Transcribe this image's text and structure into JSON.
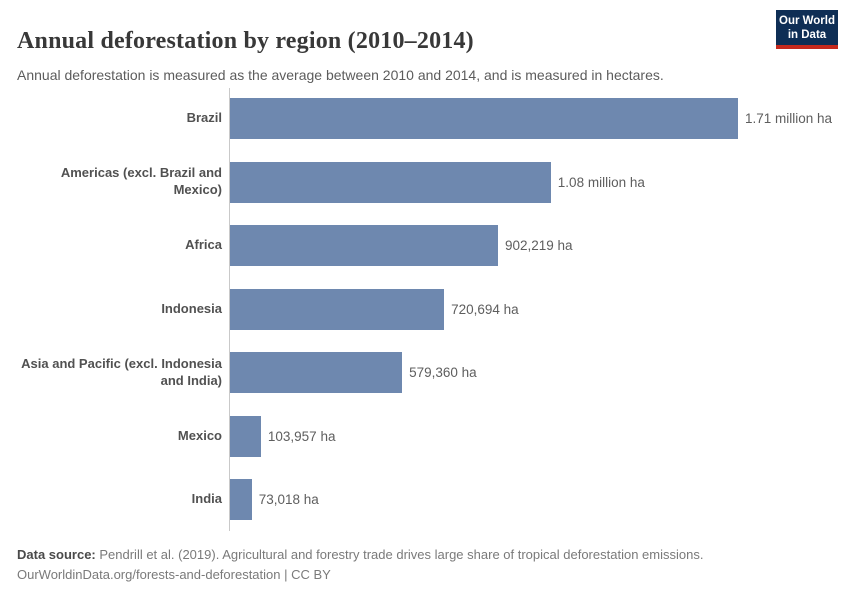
{
  "header": {
    "title": "Annual deforestation by region (2010–2014)",
    "subtitle": "Annual deforestation is measured as the average between 2010 and 2014, and is measured in hectares.",
    "logo": {
      "line1": "Our World",
      "line2": "in Data"
    }
  },
  "chart_data": {
    "type": "bar",
    "orientation": "horizontal",
    "categories": [
      "Brazil",
      "Americas (excl. Brazil and Mexico)",
      "Africa",
      "Indonesia",
      "Asia and Pacific (excl. Indonesia and India)",
      "Mexico",
      "India"
    ],
    "values": [
      1710000,
      1080000,
      902219,
      720694,
      579360,
      103957,
      73018
    ],
    "value_labels": [
      "1.71 million ha",
      "1.08 million ha",
      "902,219 ha",
      "720,694 ha",
      "579,360 ha",
      "103,957 ha",
      "73,018 ha"
    ],
    "unit": "hectares",
    "xlim": [
      0,
      1710000
    ],
    "bar_color": "#6e88af",
    "axis_color": "#c9c9c9",
    "grid": false,
    "legend": false
  },
  "footer": {
    "source_label": "Data source:",
    "source_text": " Pendrill et al. (2019). Agricultural and forestry trade drives large share of tropical deforestation emissions.",
    "link_line": "OurWorldinData.org/forests-and-deforestation | CC BY"
  },
  "colors": {
    "bar": "#6e88af",
    "logo_navy": "#0e2e55",
    "logo_red": "#c5291d",
    "title_text": "#383838",
    "body_text": "#5c5c5c"
  }
}
